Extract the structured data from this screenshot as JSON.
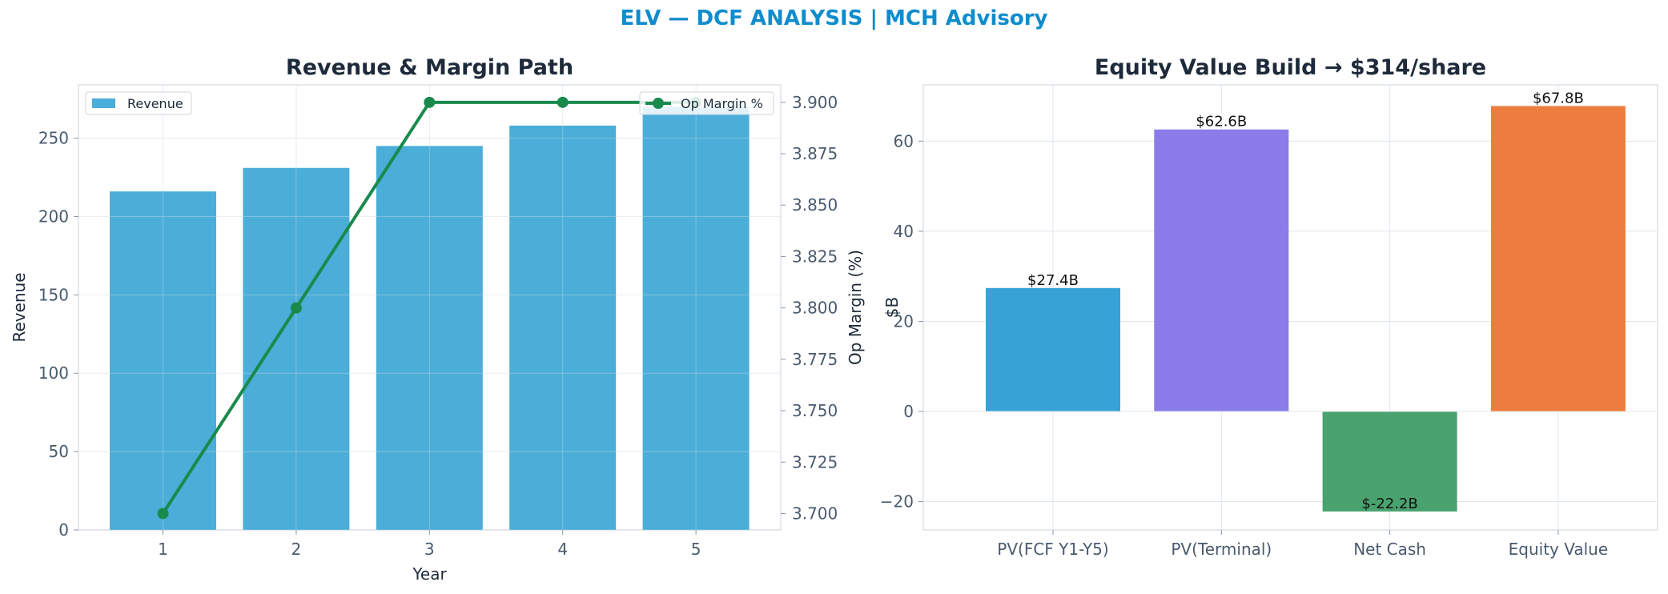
{
  "page": {
    "title": "ELV — DCF ANALYSIS | MCH Advisory"
  },
  "colors": {
    "title": "#0e8ccd",
    "revenue_bar": "#4aaed9",
    "margin_line": "#1a8a4c",
    "pv_fcf": "#36a2d6",
    "pv_terminal": "#8a7de9",
    "net_cash": "#4aa26e",
    "equity_value": "#ed7d3f",
    "axis_text": "#4a5a6e",
    "heading_text": "#1e2a3a"
  },
  "chart_data": [
    {
      "type": "bar",
      "title": "Revenue & Margin Path",
      "xlabel": "Year",
      "ylabel": "Revenue",
      "y2label": "Op Margin (%)",
      "categories": [
        "1",
        "2",
        "3",
        "4",
        "5"
      ],
      "ylim": [
        0,
        284
      ],
      "yticks": [
        0,
        50,
        100,
        150,
        200,
        250
      ],
      "y2lim": [
        3.692,
        3.9085
      ],
      "y2ticks": [
        "3.700",
        "3.725",
        "3.750",
        "3.775",
        "3.800",
        "3.825",
        "3.850",
        "3.875",
        "3.900"
      ],
      "grid": true,
      "series": [
        {
          "name": "Revenue",
          "kind": "bar",
          "axis": "left",
          "values": [
            216,
            231,
            245,
            258,
            270
          ]
        },
        {
          "name": "Op Margin %",
          "kind": "line",
          "axis": "right",
          "values": [
            3.7,
            3.8,
            3.9,
            3.9,
            3.9
          ]
        }
      ],
      "legend": [
        {
          "name": "Revenue",
          "placement": "top-left"
        },
        {
          "name": "Op Margin %",
          "placement": "top-right"
        }
      ]
    },
    {
      "type": "bar",
      "title": "Equity Value Build → $314/share",
      "xlabel": "",
      "ylabel": "$B",
      "categories": [
        "PV(FCF Y1-Y5)",
        "PV(Terminal)",
        "Net Cash",
        "Equity Value"
      ],
      "values": [
        27.4,
        62.6,
        -22.2,
        67.8
      ],
      "data_labels": [
        "$27.4B",
        "$62.6B",
        "$-22.2B",
        "$67.8B"
      ],
      "ylim": [
        -26.3,
        72.5
      ],
      "yticks": [
        -20,
        0,
        20,
        40,
        60
      ],
      "grid": true
    }
  ]
}
